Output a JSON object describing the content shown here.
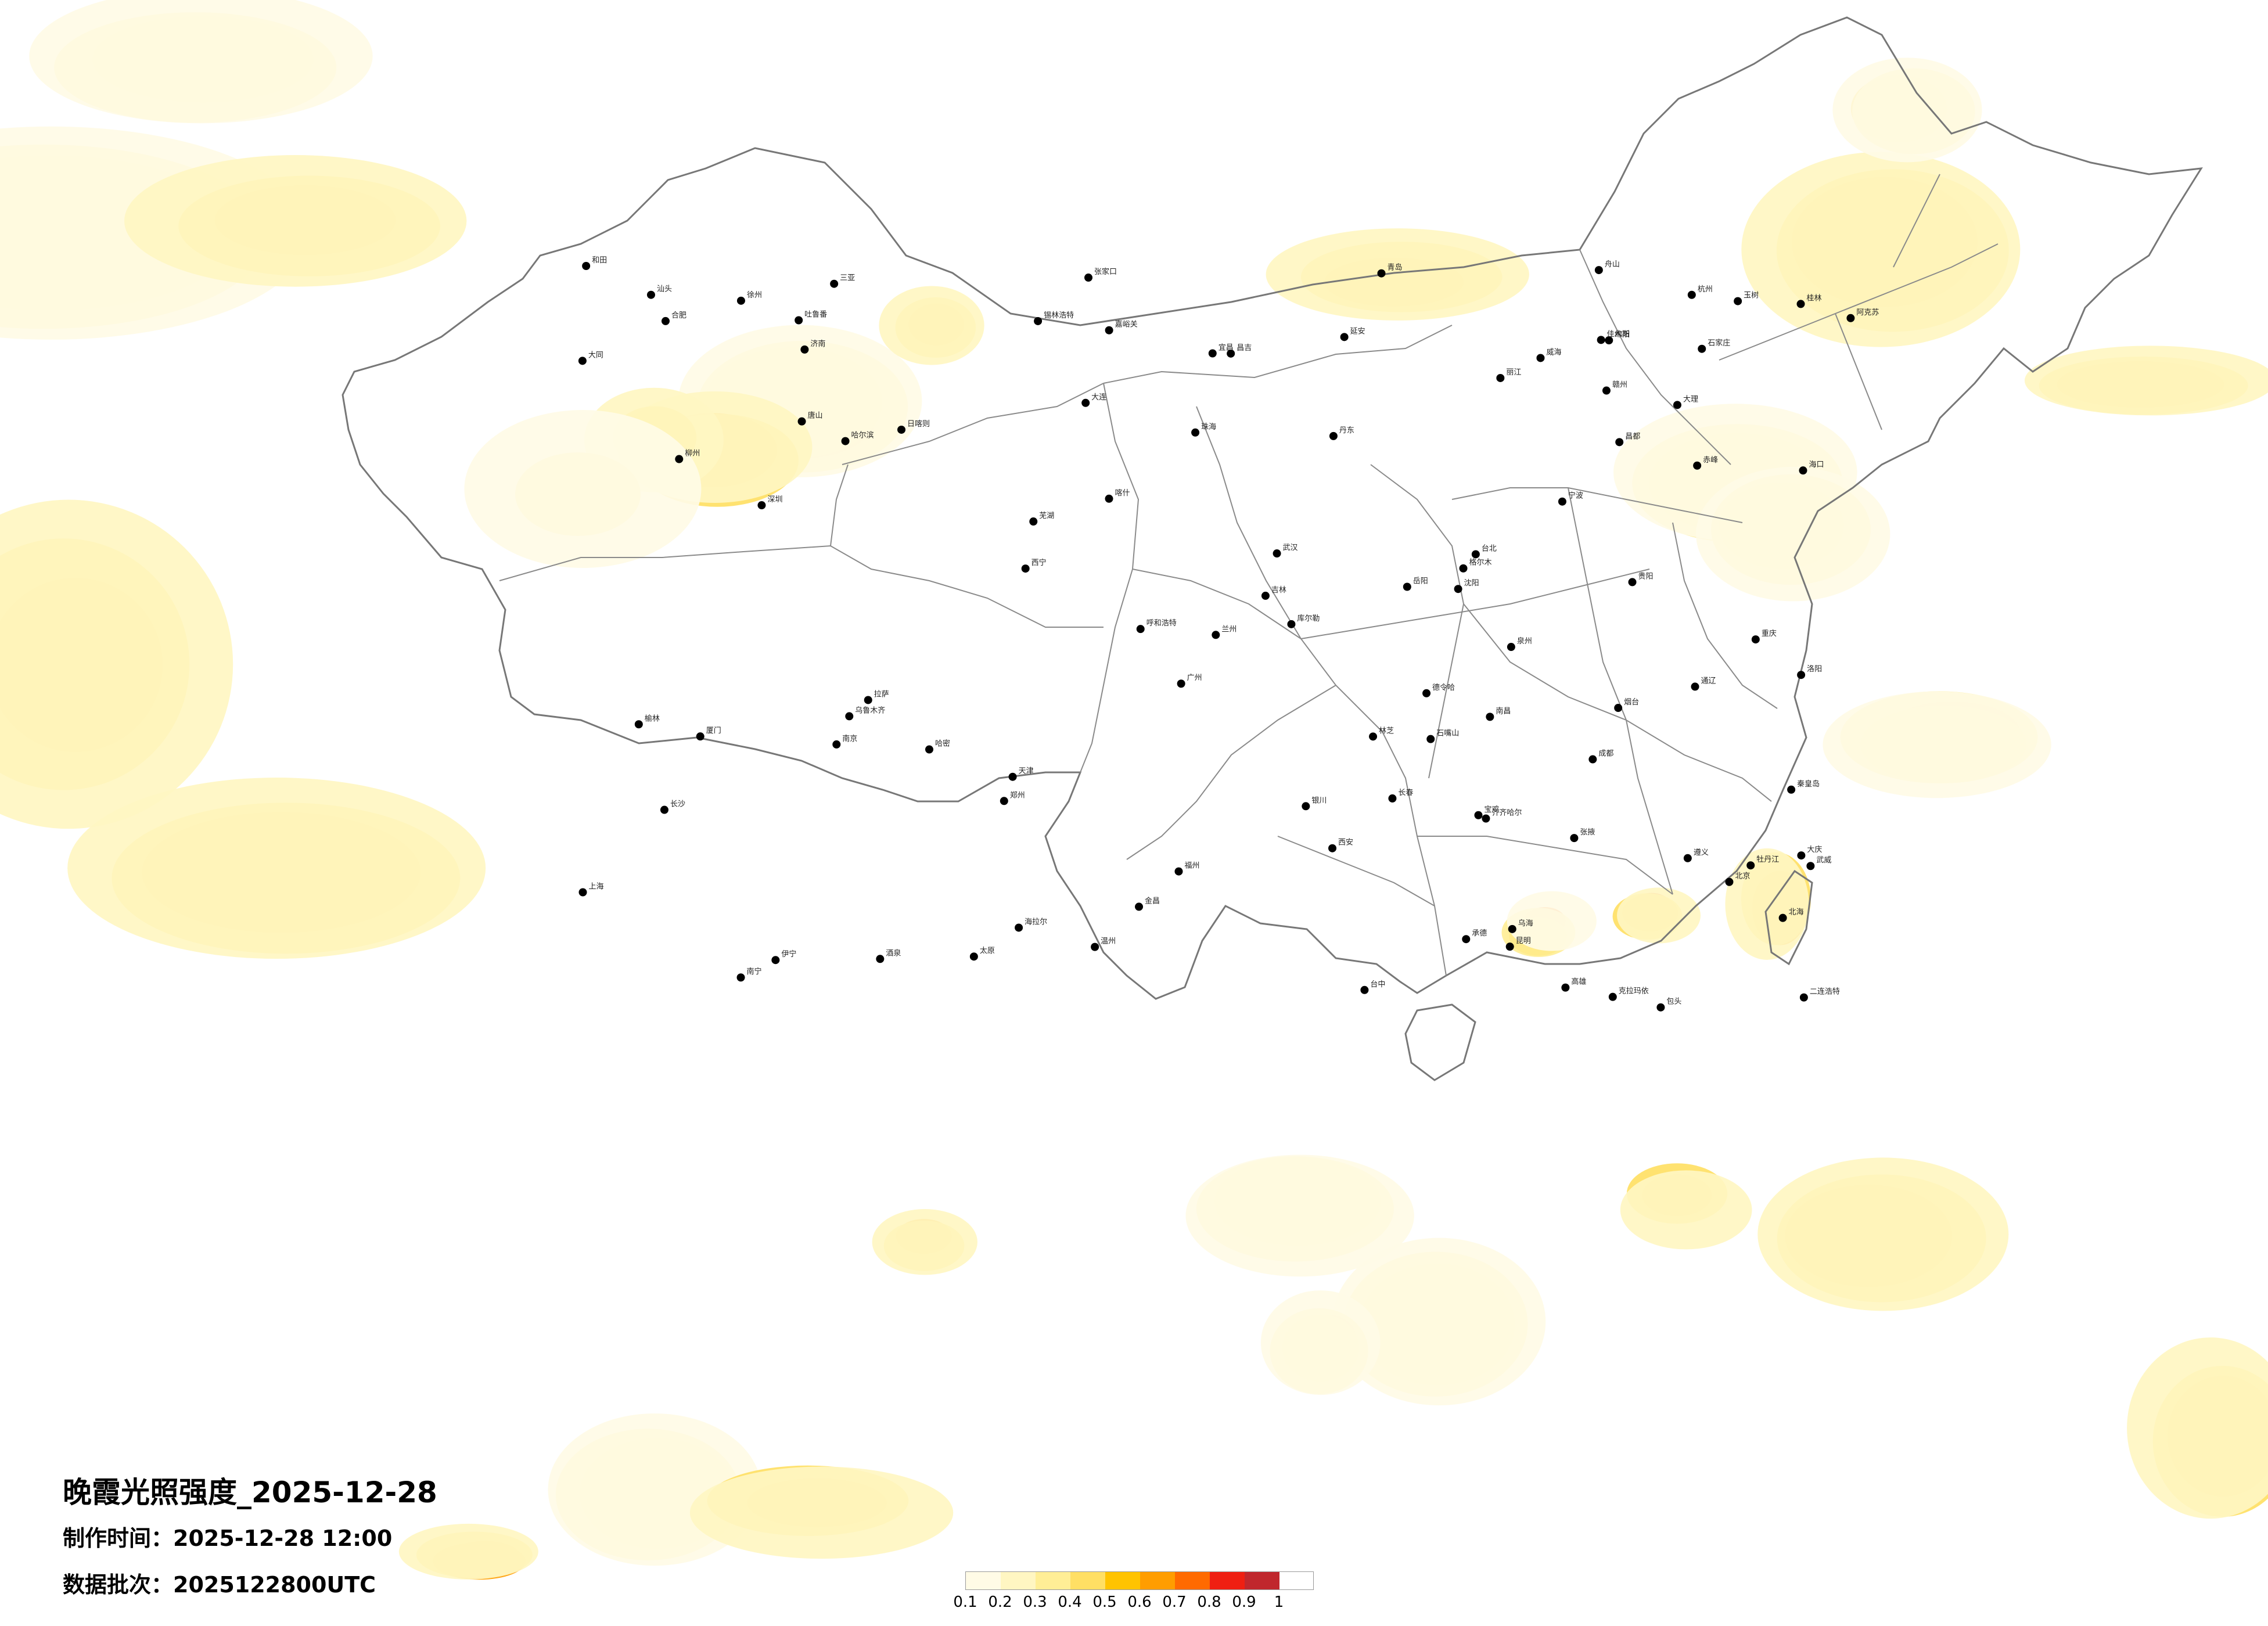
{
  "title": "晚霞光照强度_2025-12-28",
  "made_time": "制作时间：2025-12-28 12:00",
  "data_batch": "数据批次：2025122800UTC",
  "legend": {
    "ticks": [
      "0.1",
      "0.2",
      "0.3",
      "0.4",
      "0.5",
      "0.6",
      "0.7",
      "0.8",
      "0.9",
      "1"
    ],
    "colors": [
      "#fffbe6",
      "#fff6c2",
      "#ffee96",
      "#ffdf64",
      "#ffc300",
      "#ff9d00",
      "#ff6a00",
      "#ef1f12",
      "#c0272d"
    ]
  },
  "cities": [
    "克拉玛依",
    "伊宁",
    "昌吉",
    "乌鲁木齐",
    "吐鲁番",
    "哈密",
    "库尔勒",
    "阿克苏",
    "喀什",
    "和田",
    "嘉峪关",
    "酒泉",
    "张掖",
    "金昌",
    "武威",
    "德令哈",
    "西宁",
    "兰州",
    "银川",
    "石嘴山",
    "乌海",
    "包头",
    "呼和浩特",
    "二连浩特",
    "锡林浩特",
    "海拉尔",
    "齐齐哈尔",
    "大庆",
    "哈尔滨",
    "佳木斯",
    "牡丹江",
    "长春",
    "吉林",
    "通辽",
    "赤峰",
    "沈阳",
    "大连",
    "丹东",
    "北京",
    "天津",
    "石家庄",
    "太原",
    "大同",
    "张家口",
    "承德",
    "唐山",
    "秦皇岛",
    "济南",
    "青岛",
    "烟台",
    "威海",
    "郑州",
    "洛阳",
    "西安",
    "宝鸡",
    "延安",
    "榆林",
    "拉萨",
    "日喀则",
    "林芝",
    "昌都",
    "玉树",
    "格尔木",
    "成都",
    "绵阳",
    "重庆",
    "贵阳",
    "遵义",
    "昆明",
    "大理",
    "丽江",
    "南宁",
    "桂林",
    "柳州",
    "北海",
    "海口",
    "三亚",
    "广州",
    "深圳",
    "珠海",
    "汕头",
    "厦门",
    "福州",
    "泉州",
    "台北",
    "台中",
    "高雄",
    "南昌",
    "赣州",
    "长沙",
    "岳阳",
    "武汉",
    "宜昌",
    "合肥",
    "芜湖",
    "南京",
    "徐州",
    "上海",
    "杭州",
    "宁波",
    "温州",
    "舟山"
  ]
}
